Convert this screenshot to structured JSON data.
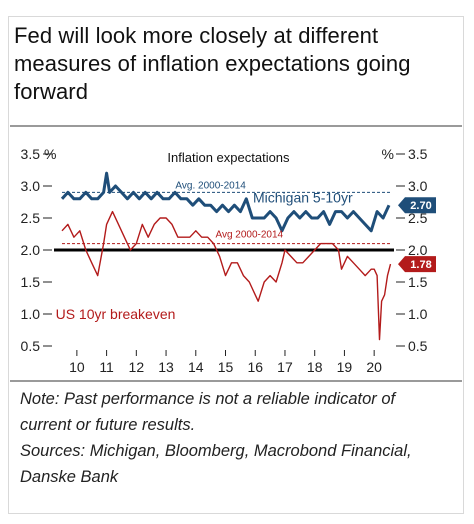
{
  "title": "Fed will look more closely at different measures of inflation expectations going forward",
  "note": {
    "line1": "Note: Past performance is not a reliable indicator of current or future results.",
    "line2": "Sources: Michigan, Bloomberg, Macrobond Financial, Danske Bank"
  },
  "colors": {
    "michigan": "#1f4e79",
    "breakeven": "#b31b1b",
    "threshold": "#000000"
  },
  "chart_data": {
    "type": "line",
    "title": "Inflation expectations",
    "left_axis_label": "%",
    "right_axis_label": "%",
    "ylim": [
      0.5,
      3.5
    ],
    "yticks": [
      "0.5",
      "1.0",
      "1.5",
      "2.0",
      "2.5",
      "3.0",
      "3.5"
    ],
    "xlim": [
      2009.5,
      2020.6
    ],
    "xticks": [
      {
        "x": 2010,
        "label": "10"
      },
      {
        "x": 2011,
        "label": "11"
      },
      {
        "x": 2012,
        "label": "12"
      },
      {
        "x": 2013,
        "label": "13"
      },
      {
        "x": 2014,
        "label": "14"
      },
      {
        "x": 2015,
        "label": "15"
      },
      {
        "x": 2016,
        "label": "16"
      },
      {
        "x": 2017,
        "label": "17"
      },
      {
        "x": 2018,
        "label": "18"
      },
      {
        "x": 2019,
        "label": "19"
      },
      {
        "x": 2020,
        "label": "20"
      }
    ],
    "hlines": [
      {
        "name": "threshold",
        "y": 2.0
      },
      {
        "name": "michigan-avg",
        "y": 2.9,
        "label": "Avg. 2000-2014"
      },
      {
        "name": "breakeven-avg",
        "y": 2.1,
        "label": "Avg 2000-2014"
      }
    ],
    "series": [
      {
        "name": "Michigan 5-10yr",
        "last_value_label": "2.70",
        "points": [
          [
            2009.5,
            2.8
          ],
          [
            2009.7,
            2.9
          ],
          [
            2009.9,
            2.8
          ],
          [
            2010.1,
            2.8
          ],
          [
            2010.3,
            2.9
          ],
          [
            2010.5,
            2.8
          ],
          [
            2010.7,
            2.8
          ],
          [
            2010.9,
            2.9
          ],
          [
            2011.0,
            3.2
          ],
          [
            2011.1,
            2.9
          ],
          [
            2011.3,
            3.0
          ],
          [
            2011.5,
            2.9
          ],
          [
            2011.7,
            2.8
          ],
          [
            2011.9,
            2.9
          ],
          [
            2012.1,
            2.8
          ],
          [
            2012.3,
            2.9
          ],
          [
            2012.5,
            2.8
          ],
          [
            2012.7,
            2.9
          ],
          [
            2012.9,
            2.8
          ],
          [
            2013.1,
            2.8
          ],
          [
            2013.3,
            2.9
          ],
          [
            2013.5,
            2.8
          ],
          [
            2013.7,
            2.8
          ],
          [
            2013.9,
            2.7
          ],
          [
            2014.1,
            2.8
          ],
          [
            2014.3,
            2.7
          ],
          [
            2014.5,
            2.7
          ],
          [
            2014.7,
            2.6
          ],
          [
            2014.9,
            2.7
          ],
          [
            2015.1,
            2.6
          ],
          [
            2015.3,
            2.7
          ],
          [
            2015.5,
            2.6
          ],
          [
            2015.7,
            2.8
          ],
          [
            2015.9,
            2.5
          ],
          [
            2016.1,
            2.5
          ],
          [
            2016.3,
            2.5
          ],
          [
            2016.5,
            2.6
          ],
          [
            2016.7,
            2.5
          ],
          [
            2016.9,
            2.3
          ],
          [
            2017.1,
            2.5
          ],
          [
            2017.3,
            2.6
          ],
          [
            2017.5,
            2.5
          ],
          [
            2017.7,
            2.6
          ],
          [
            2017.9,
            2.5
          ],
          [
            2018.1,
            2.5
          ],
          [
            2018.3,
            2.6
          ],
          [
            2018.5,
            2.4
          ],
          [
            2018.7,
            2.6
          ],
          [
            2018.9,
            2.6
          ],
          [
            2019.1,
            2.5
          ],
          [
            2019.3,
            2.6
          ],
          [
            2019.5,
            2.5
          ],
          [
            2019.7,
            2.4
          ],
          [
            2019.9,
            2.3
          ],
          [
            2020.1,
            2.6
          ],
          [
            2020.3,
            2.5
          ],
          [
            2020.5,
            2.7
          ]
        ]
      },
      {
        "name": "US 10yr breakeven",
        "last_value_label": "1.78",
        "points": [
          [
            2009.5,
            2.3
          ],
          [
            2009.7,
            2.4
          ],
          [
            2009.9,
            2.2
          ],
          [
            2010.1,
            2.3
          ],
          [
            2010.3,
            2.0
          ],
          [
            2010.5,
            1.8
          ],
          [
            2010.7,
            1.6
          ],
          [
            2010.9,
            2.1
          ],
          [
            2011.0,
            2.4
          ],
          [
            2011.2,
            2.6
          ],
          [
            2011.4,
            2.4
          ],
          [
            2011.6,
            2.2
          ],
          [
            2011.8,
            2.0
          ],
          [
            2012.0,
            2.1
          ],
          [
            2012.2,
            2.4
          ],
          [
            2012.4,
            2.2
          ],
          [
            2012.6,
            2.4
          ],
          [
            2012.8,
            2.5
          ],
          [
            2013.0,
            2.5
          ],
          [
            2013.2,
            2.4
          ],
          [
            2013.4,
            2.2
          ],
          [
            2013.6,
            2.2
          ],
          [
            2013.8,
            2.2
          ],
          [
            2014.0,
            2.3
          ],
          [
            2014.2,
            2.2
          ],
          [
            2014.4,
            2.2
          ],
          [
            2014.6,
            2.1
          ],
          [
            2014.8,
            1.9
          ],
          [
            2015.0,
            1.6
          ],
          [
            2015.2,
            1.8
          ],
          [
            2015.4,
            1.8
          ],
          [
            2015.6,
            1.6
          ],
          [
            2015.8,
            1.5
          ],
          [
            2016.0,
            1.3
          ],
          [
            2016.1,
            1.2
          ],
          [
            2016.3,
            1.5
          ],
          [
            2016.5,
            1.6
          ],
          [
            2016.7,
            1.5
          ],
          [
            2016.9,
            1.8
          ],
          [
            2017.0,
            2.0
          ],
          [
            2017.2,
            1.9
          ],
          [
            2017.4,
            1.8
          ],
          [
            2017.6,
            1.8
          ],
          [
            2017.8,
            1.9
          ],
          [
            2018.0,
            2.0
          ],
          [
            2018.2,
            2.1
          ],
          [
            2018.4,
            2.1
          ],
          [
            2018.6,
            2.1
          ],
          [
            2018.8,
            2.0
          ],
          [
            2018.9,
            1.7
          ],
          [
            2019.1,
            1.9
          ],
          [
            2019.3,
            1.8
          ],
          [
            2019.5,
            1.7
          ],
          [
            2019.7,
            1.6
          ],
          [
            2019.9,
            1.7
          ],
          [
            2020.0,
            1.7
          ],
          [
            2020.1,
            1.6
          ],
          [
            2020.18,
            0.6
          ],
          [
            2020.25,
            1.2
          ],
          [
            2020.35,
            1.3
          ],
          [
            2020.45,
            1.6
          ],
          [
            2020.55,
            1.78
          ]
        ]
      }
    ],
    "annotations": [
      {
        "text": "Inflation expectations",
        "x": 2015.1,
        "y": 3.45
      },
      {
        "text": "Avg. 2000-2014",
        "x": 2014.5,
        "y": 3.04
      },
      {
        "text": "Michigan 5-10yr",
        "x": 2017.6,
        "y": 2.82
      },
      {
        "text": "Avg 2000-2014",
        "x": 2015.8,
        "y": 2.27
      },
      {
        "text": "US 10yr breakeven",
        "x": 2011.3,
        "y": 1.0
      }
    ]
  }
}
